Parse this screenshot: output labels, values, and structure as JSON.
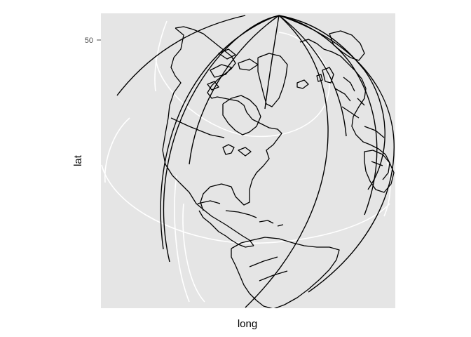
{
  "chart_data": {
    "type": "map",
    "projection": "orthographic",
    "xlabel": "long",
    "ylabel": "lat",
    "y_ticks": [
      {
        "value": 50,
        "label": "50"
      }
    ],
    "x_ticks": [],
    "grid": true,
    "colors": {
      "panel_background": "#e5e5e5",
      "coastline": "#000000",
      "graticule": "#ffffff",
      "tick_text": "#4d4d4d"
    }
  }
}
